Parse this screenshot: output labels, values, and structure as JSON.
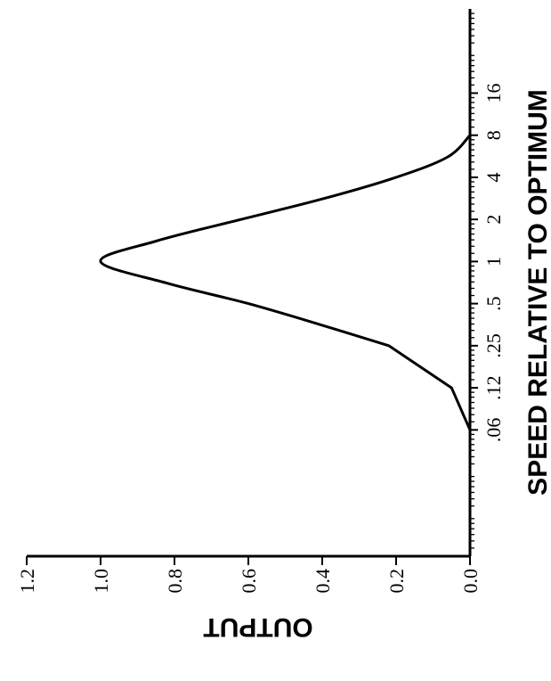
{
  "chart_data": {
    "type": "line",
    "title": "",
    "xlabel": "SPEED RELATIVE TO OPTIMUM",
    "ylabel": "OUTPUT",
    "x_scale": "log2",
    "xlim": [
      0.0078125,
      64
    ],
    "ylim": [
      0,
      1.2
    ],
    "x_tick_labels": [
      ".06",
      ".12",
      ".25",
      ".5",
      "1",
      "2",
      "4",
      "8",
      "16"
    ],
    "x_tick_values": [
      0.0625,
      0.125,
      0.25,
      0.5,
      1,
      2,
      4,
      8,
      16
    ],
    "y_tick_labels": [
      "0.0",
      "0.2",
      "0.4",
      "0.6",
      "0.8",
      "1.0",
      "1.2"
    ],
    "y_tick_values": [
      0,
      0.2,
      0.4,
      0.6,
      0.8,
      1.0,
      1.2
    ],
    "grid": false,
    "legend": "none",
    "orientation": "rotated 90° counter-clockwise",
    "series": [
      {
        "x": [
          0.0625,
          0.125,
          0.25,
          0.35,
          0.5,
          0.7,
          1.0,
          1.4,
          2.0,
          2.8,
          4.0,
          5.6,
          8.0
        ],
        "values": [
          0.0,
          0.05,
          0.22,
          0.4,
          0.6,
          0.82,
          1.0,
          0.85,
          0.62,
          0.4,
          0.2,
          0.06,
          0.0
        ]
      }
    ]
  }
}
